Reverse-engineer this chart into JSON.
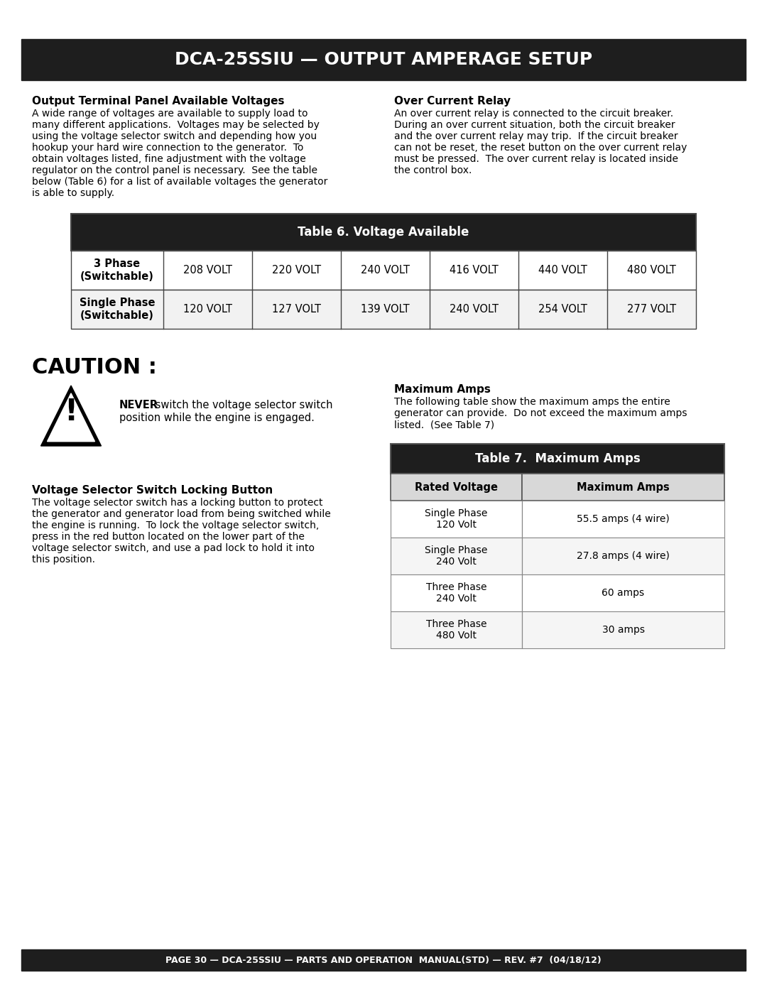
{
  "title": "DCA-25SSIU — OUTPUT AMPERAGE SETUP",
  "title_bg": "#1e1e1e",
  "title_color": "#ffffff",
  "footer_text": "PAGE 30 — DCA-25SSIU — PARTS AND OPERATION  MANUAL(STD) — REV. #7  (04/18/12)",
  "footer_bg": "#1e1e1e",
  "footer_color": "#ffffff",
  "section1_title": "Output Terminal Panel Available Voltages",
  "section2_title": "Over Current Relay",
  "table6_title": "Table 6. Voltage Available",
  "table6_rows": [
    [
      "3 Phase\n(Switchable)",
      "208 VOLT",
      "220 VOLT",
      "240 VOLT",
      "416 VOLT",
      "440 VOLT",
      "480 VOLT"
    ],
    [
      "Single Phase\n(Switchable)",
      "120 VOLT",
      "127 VOLT",
      "139 VOLT",
      "240 VOLT",
      "254 VOLT",
      "277 VOLT"
    ]
  ],
  "caution_title": "CAUTION :",
  "caution_line1_bold": "NEVER",
  "caution_line1_rest": " switch the voltage selector switch",
  "caution_line2": "position while the engine is engaged.",
  "vsslb_title": "Voltage Selector Switch Locking Button",
  "vsslb_lines": [
    "The voltage selector switch has a locking button to protect",
    "the generator and generator load from being switched while",
    "the engine is running.  To lock the voltage selector switch,",
    "press in the red button located on the lower part of the",
    "voltage selector switch, and use a pad lock to hold it into",
    "this position."
  ],
  "max_amps_title": "Maximum Amps",
  "max_amps_lines": [
    "The following table show the maximum amps the entire",
    "generator can provide.  Do not exceed the maximum amps",
    "listed.  (See Table 7)"
  ],
  "table7_title": "Table 7.  Maximum Amps",
  "table7_col1": "Rated Voltage",
  "table7_col2": "Maximum Amps",
  "table7_rows": [
    [
      "Single Phase\n120 Volt",
      "55.5 amps (4 wire)"
    ],
    [
      "Single Phase\n240 Volt",
      "27.8 amps (4 wire)"
    ],
    [
      "Three Phase\n240 Volt",
      "60 amps"
    ],
    [
      "Three Phase\n480 Volt",
      "30 amps"
    ]
  ],
  "s1_lines": [
    "A wide range of voltages are available to supply load to",
    "many different applications.  Voltages may be selected by",
    "using the voltage selector switch and depending how you",
    "hookup your hard wire connection to the generator.  To",
    "obtain voltages listed, fine adjustment with the voltage",
    "regulator on the control panel is necessary.  See the table",
    "below (Table 6) for a list of available voltages the generator",
    "is able to supply."
  ],
  "s2_lines": [
    "An over current relay is connected to the circuit breaker.",
    "During an over current situation, both the circuit breaker",
    "and the over current relay may trip.  If the circuit breaker",
    "can not be reset, the reset button on the over current relay",
    "must be pressed.  The over current relay is located inside",
    "the control box."
  ],
  "bg_color": "#ffffff",
  "table_hdr_bg": "#1e1e1e",
  "table_hdr_fg": "#ffffff",
  "table_border": "#444444",
  "table7_hdr_bg": "#1e1e1e",
  "table7_col_hdr_bg": "#d8d8d8"
}
